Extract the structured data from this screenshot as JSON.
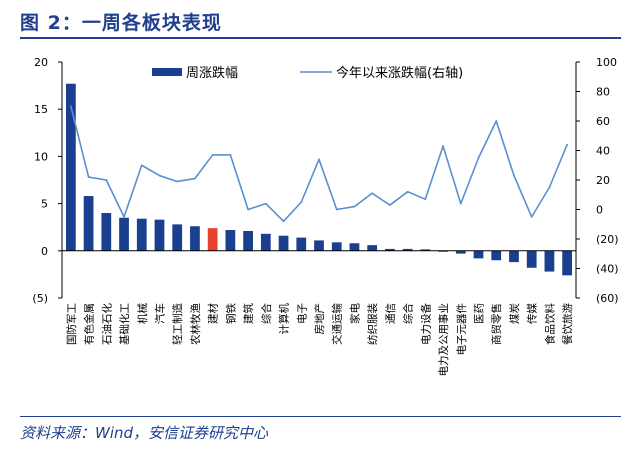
{
  "header": {
    "title": "图 2：一周各板块表现"
  },
  "footer": {
    "source": "资料来源：Wind，安信证券研究中心"
  },
  "colors": {
    "bar": "#1b3f8f",
    "highlight": "#e8432f",
    "line": "#5a8fd0",
    "accent": "#1f3f8f"
  },
  "chart_data": {
    "type": "bar",
    "title": "一周各板块表现",
    "categories": [
      "国防军工",
      "有色金属",
      "石油石化",
      "基础化工",
      "机械",
      "汽车",
      "轻工制造",
      "农林牧渔",
      "建材",
      "钢铁",
      "建筑",
      "综合",
      "计算机",
      "电子",
      "房地产",
      "交通运输",
      "家电",
      "纺织服装",
      "通信",
      "综合",
      "电力设备",
      "电力及公用事业",
      "电子元器件",
      "医药",
      "商贸零售",
      "煤炭",
      "传媒",
      "食品饮料",
      "餐饮旅游"
    ],
    "highlight_index": 8,
    "series": [
      {
        "name": "周涨跌幅",
        "type": "bar",
        "axis": "left",
        "values": [
          17.7,
          5.8,
          4.0,
          3.5,
          3.4,
          3.3,
          2.8,
          2.6,
          2.4,
          2.2,
          2.1,
          1.8,
          1.6,
          1.4,
          1.1,
          0.9,
          0.8,
          0.6,
          0.2,
          0.2,
          0.15,
          -0.1,
          -0.3,
          -0.8,
          -1.0,
          -1.2,
          -1.8,
          -2.2,
          -2.6
        ]
      },
      {
        "name": "今年以来涨跌幅(右轴)",
        "type": "line",
        "axis": "right",
        "values": [
          70,
          22,
          20,
          -5,
          30,
          23,
          19,
          21,
          37,
          37,
          0,
          4,
          -8,
          5,
          34,
          0,
          2,
          11,
          3,
          12,
          7,
          43,
          4,
          35,
          60,
          23,
          -5,
          15,
          44
        ]
      }
    ],
    "yleft": {
      "lim": [
        -5,
        20
      ],
      "ticks": [
        -5,
        0,
        5,
        10,
        15,
        20
      ],
      "tick_labels": [
        "(5)",
        "0",
        "5",
        "10",
        "15",
        "20"
      ]
    },
    "yright": {
      "lim": [
        -60,
        100
      ],
      "ticks": [
        -60,
        -40,
        -20,
        0,
        20,
        40,
        60,
        80,
        100
      ],
      "tick_labels": [
        "(60)",
        "(40)",
        "(20)",
        "0",
        "20",
        "40",
        "60",
        "80",
        "100"
      ]
    },
    "legend": {
      "position": "top",
      "bar_label": "周涨跌幅",
      "line_label": "今年以来涨跌幅(右轴)"
    },
    "grid": false
  }
}
